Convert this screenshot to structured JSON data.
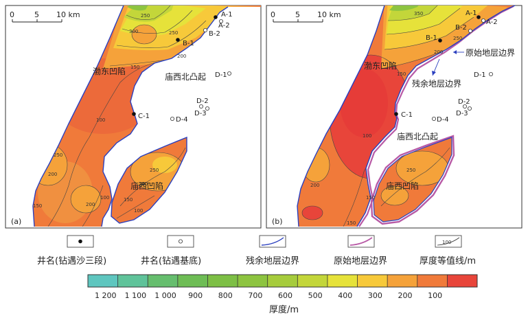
{
  "scale_bar": {
    "ticks": [
      "0",
      "5",
      "10 km"
    ]
  },
  "panels": [
    {
      "id": "a",
      "panel_label": "(a)",
      "regions": [
        "渤东凹陷",
        "庙西北凸起",
        "庙西凹陷"
      ],
      "wells": [
        {
          "name": "A-1",
          "type": "drilled_sha3"
        },
        {
          "name": "A-2",
          "type": "drilled_basement"
        },
        {
          "name": "B-1",
          "type": "drilled_sha3"
        },
        {
          "name": "B-2",
          "type": "drilled_basement"
        },
        {
          "name": "C-1",
          "type": "drilled_sha3"
        },
        {
          "name": "D-1",
          "type": "drilled_basement"
        },
        {
          "name": "D-2",
          "type": "drilled_basement"
        },
        {
          "name": "D-3",
          "type": "drilled_basement"
        },
        {
          "name": "D-4",
          "type": "drilled_basement"
        }
      ],
      "contour_labels": [
        "250",
        "300",
        "250",
        "200",
        "150",
        "100",
        "250",
        "200",
        "100",
        "150",
        "200",
        "250",
        "100",
        "150",
        "200"
      ],
      "annotations": []
    },
    {
      "id": "b",
      "panel_label": "(b)",
      "regions": [
        "渤东凹陷",
        "庙西北凸起",
        "庙西凹陷"
      ],
      "wells": [
        {
          "name": "A-1",
          "type": "drilled_sha3"
        },
        {
          "name": "A-2",
          "type": "drilled_basement"
        },
        {
          "name": "B-1",
          "type": "drilled_sha3"
        },
        {
          "name": "B-2",
          "type": "drilled_basement"
        },
        {
          "name": "C-1",
          "type": "drilled_sha3"
        },
        {
          "name": "D-1",
          "type": "drilled_basement"
        },
        {
          "name": "D-2",
          "type": "drilled_basement"
        },
        {
          "name": "D-3",
          "type": "drilled_basement"
        },
        {
          "name": "D-4",
          "type": "drilled_basement"
        }
      ],
      "contour_labels": [
        "350",
        "250",
        "200",
        "150",
        "100",
        "200",
        "250",
        "150",
        "150"
      ],
      "annotations": [
        "原始地层边界",
        "残余地层边界"
      ]
    }
  ],
  "legend": [
    {
      "symbol": "filled-dot",
      "label": "井名(钻遇沙三段)"
    },
    {
      "symbol": "open-circle",
      "label": "井名(钻遇基底)"
    },
    {
      "symbol": "blue-line",
      "label": "残余地层边界",
      "color": "#2a3fbf"
    },
    {
      "symbol": "purple-line",
      "label": "原始地层边界",
      "color": "#b85aa6"
    },
    {
      "symbol": "contour-line",
      "label": "厚度等值线/m",
      "sample_value": "100"
    }
  ],
  "colorbar": {
    "title": "厚度/m",
    "ticks": [
      "1 200",
      "1 100",
      "1 000",
      "900",
      "800",
      "700",
      "600",
      "500",
      "400",
      "300",
      "200",
      "100"
    ],
    "colors": [
      "#5ec6bf",
      "#5fc39a",
      "#66be6e",
      "#6ebd55",
      "#7dbf45",
      "#8dc440",
      "#a6cc3c",
      "#c3d63a",
      "#e6e23a",
      "#f7c93a",
      "#f5a23a",
      "#f07a3a",
      "#e8453a"
    ]
  },
  "colors": {
    "residual_boundary": "#2a3fbf",
    "original_boundary": "#b85aa6",
    "frame": "#333333"
  }
}
